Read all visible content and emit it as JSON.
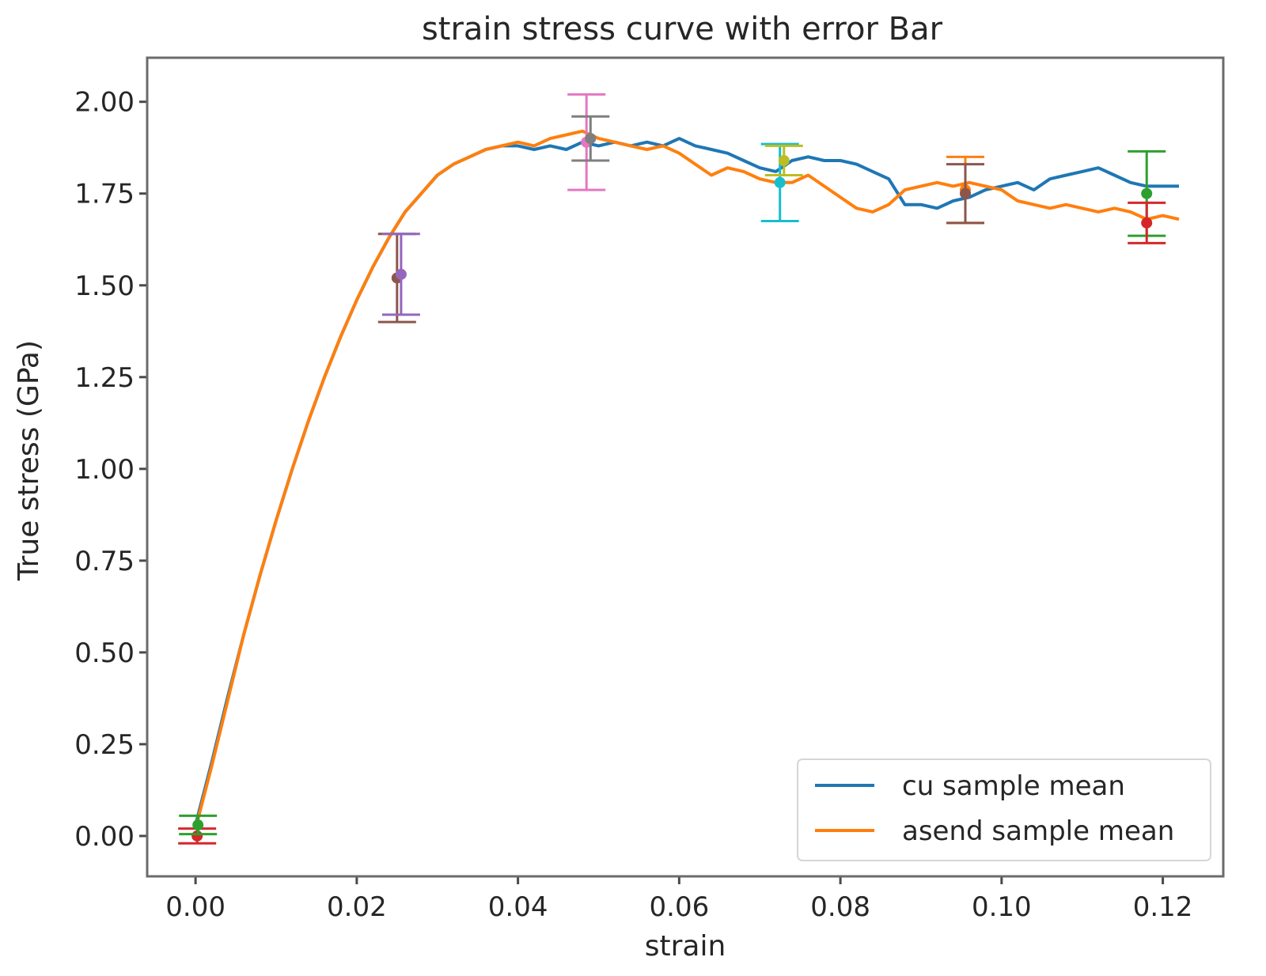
{
  "chart_data": {
    "type": "line",
    "title": "strain stress curve with error Bar",
    "xlabel": "strain",
    "ylabel": "True stress (GPa)",
    "xlim": [
      -0.006,
      0.1275
    ],
    "ylim": [
      -0.11,
      2.12
    ],
    "xticks": [
      0.0,
      0.02,
      0.04,
      0.06,
      0.08,
      0.1,
      0.12
    ],
    "xtick_labels": [
      "0.00",
      "0.02",
      "0.04",
      "0.06",
      "0.08",
      "0.10",
      "0.12"
    ],
    "yticks": [
      0.0,
      0.25,
      0.5,
      0.75,
      1.0,
      1.25,
      1.5,
      1.75,
      2.0
    ],
    "ytick_labels": [
      "0.00",
      "0.25",
      "0.50",
      "0.75",
      "1.00",
      "1.25",
      "1.50",
      "1.75",
      "2.00"
    ],
    "grid": false,
    "legend_position": "lower-right",
    "series": [
      {
        "name": "cu sample mean",
        "color": "#1f77b4",
        "x": [
          0.0,
          0.002,
          0.004,
          0.006,
          0.008,
          0.01,
          0.012,
          0.014,
          0.016,
          0.018,
          0.02,
          0.022,
          0.024,
          0.026,
          0.028,
          0.03,
          0.032,
          0.034,
          0.036,
          0.038,
          0.04,
          0.042,
          0.044,
          0.046,
          0.048,
          0.05,
          0.052,
          0.054,
          0.056,
          0.058,
          0.06,
          0.062,
          0.064,
          0.066,
          0.068,
          0.07,
          0.072,
          0.074,
          0.076,
          0.078,
          0.08,
          0.082,
          0.084,
          0.086,
          0.088,
          0.09,
          0.092,
          0.094,
          0.096,
          0.098,
          0.1,
          0.102,
          0.104,
          0.106,
          0.108,
          0.11,
          0.112,
          0.114,
          0.116,
          0.118,
          0.12,
          0.122
        ],
        "y": [
          0.03,
          0.2,
          0.38,
          0.55,
          0.71,
          0.86,
          1.0,
          1.13,
          1.25,
          1.36,
          1.46,
          1.55,
          1.63,
          1.7,
          1.75,
          1.8,
          1.83,
          1.85,
          1.87,
          1.88,
          1.88,
          1.87,
          1.88,
          1.87,
          1.89,
          1.88,
          1.89,
          1.88,
          1.89,
          1.88,
          1.9,
          1.88,
          1.87,
          1.86,
          1.84,
          1.82,
          1.81,
          1.84,
          1.85,
          1.84,
          1.84,
          1.83,
          1.81,
          1.79,
          1.72,
          1.72,
          1.71,
          1.73,
          1.74,
          1.76,
          1.77,
          1.78,
          1.76,
          1.79,
          1.8,
          1.81,
          1.82,
          1.8,
          1.78,
          1.77,
          1.77,
          1.77
        ]
      },
      {
        "name": "asend sample mean",
        "color": "#ff7f0e",
        "x": [
          0.0,
          0.002,
          0.004,
          0.006,
          0.008,
          0.01,
          0.012,
          0.014,
          0.016,
          0.018,
          0.02,
          0.022,
          0.024,
          0.026,
          0.028,
          0.03,
          0.032,
          0.034,
          0.036,
          0.038,
          0.04,
          0.042,
          0.044,
          0.046,
          0.048,
          0.05,
          0.052,
          0.054,
          0.056,
          0.058,
          0.06,
          0.062,
          0.064,
          0.066,
          0.068,
          0.07,
          0.072,
          0.074,
          0.076,
          0.078,
          0.08,
          0.082,
          0.084,
          0.086,
          0.088,
          0.09,
          0.092,
          0.094,
          0.096,
          0.098,
          0.1,
          0.102,
          0.104,
          0.106,
          0.108,
          0.11,
          0.112,
          0.114,
          0.116,
          0.118,
          0.12,
          0.122
        ],
        "y": [
          0.02,
          0.19,
          0.37,
          0.55,
          0.71,
          0.86,
          1.0,
          1.13,
          1.25,
          1.36,
          1.46,
          1.55,
          1.63,
          1.7,
          1.75,
          1.8,
          1.83,
          1.85,
          1.87,
          1.88,
          1.89,
          1.88,
          1.9,
          1.91,
          1.92,
          1.9,
          1.89,
          1.88,
          1.87,
          1.88,
          1.86,
          1.83,
          1.8,
          1.82,
          1.81,
          1.79,
          1.78,
          1.78,
          1.8,
          1.77,
          1.74,
          1.71,
          1.7,
          1.72,
          1.76,
          1.77,
          1.78,
          1.77,
          1.78,
          1.77,
          1.76,
          1.73,
          1.72,
          1.71,
          1.72,
          1.71,
          1.7,
          1.71,
          1.7,
          1.68,
          1.69,
          1.68
        ]
      }
    ],
    "error_bars": [
      {
        "x": 0.0002,
        "y": 0.0,
        "err": 0.02,
        "color": "#d62728"
      },
      {
        "x": 0.0003,
        "y": 0.03,
        "err": 0.025,
        "color": "#2ca02c"
      },
      {
        "x": 0.025,
        "y": 1.52,
        "err": 0.12,
        "color": "#8c564b"
      },
      {
        "x": 0.0255,
        "y": 1.53,
        "err": 0.11,
        "color": "#9467bd"
      },
      {
        "x": 0.0485,
        "y": 1.89,
        "err": 0.13,
        "color": "#e377c2"
      },
      {
        "x": 0.049,
        "y": 1.9,
        "err": 0.06,
        "color": "#7f7f7f"
      },
      {
        "x": 0.0725,
        "y": 1.78,
        "err": 0.105,
        "color": "#17becf"
      },
      {
        "x": 0.073,
        "y": 1.84,
        "err": 0.04,
        "color": "#bcbd22"
      },
      {
        "x": 0.0955,
        "y": 1.76,
        "err": 0.09,
        "color": "#ff7f0e"
      },
      {
        "x": 0.0955,
        "y": 1.75,
        "err": 0.08,
        "color": "#8c564b"
      },
      {
        "x": 0.118,
        "y": 1.75,
        "err": 0.115,
        "color": "#2ca02c"
      },
      {
        "x": 0.118,
        "y": 1.67,
        "err": 0.055,
        "color": "#d62728"
      }
    ]
  }
}
